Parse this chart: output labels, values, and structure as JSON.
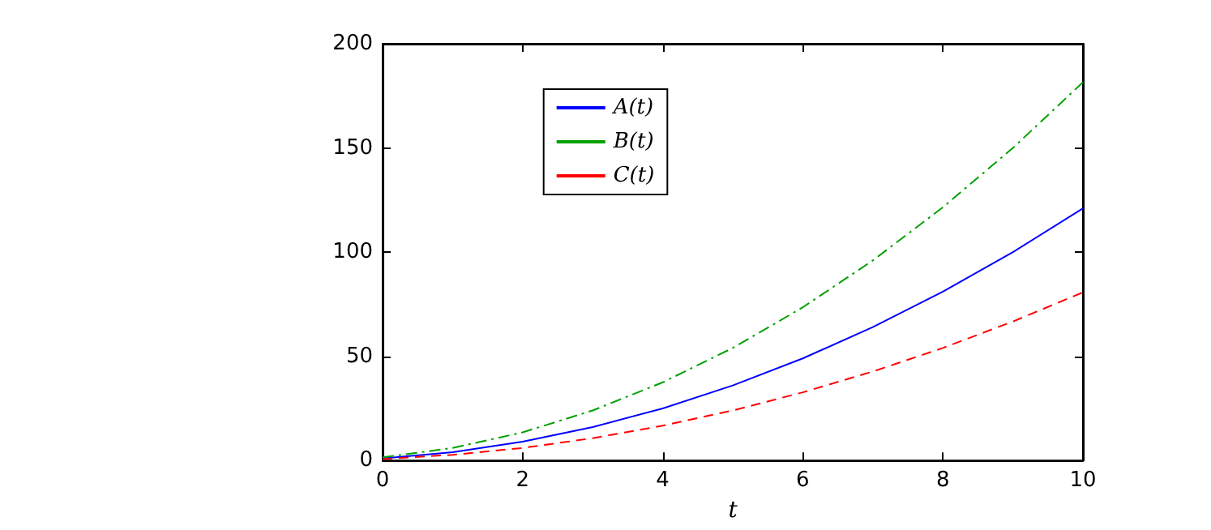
{
  "chart_data": {
    "type": "line",
    "xlabel": "t",
    "x": [
      0,
      1,
      2,
      3,
      4,
      5,
      6,
      7,
      8,
      9,
      10
    ],
    "series": [
      {
        "name": "A(t)",
        "color": "#0000ff",
        "line_style": "solid",
        "values": [
          1,
          4,
          9,
          16,
          25,
          36,
          49,
          64,
          81,
          100,
          121
        ]
      },
      {
        "name": "B(t)",
        "color": "#00a000",
        "line_style": "dotted",
        "values": [
          1.5,
          6,
          13.5,
          24,
          37.5,
          54,
          73.5,
          96,
          121.5,
          150,
          181.5
        ]
      },
      {
        "name": "C(t)",
        "color": "#ff0000",
        "line_style": "dashed",
        "values": [
          0.7,
          2.7,
          6,
          10.7,
          16.7,
          24,
          32.7,
          42.7,
          54,
          66.7,
          80.7
        ]
      }
    ],
    "xlim": [
      0,
      10
    ],
    "xticks": [
      0,
      2,
      4,
      6,
      8,
      10
    ],
    "ylim": [
      0,
      200
    ],
    "yticks": [
      0,
      50,
      100,
      150,
      200
    ],
    "grid": false,
    "legend": "top",
    "marker": "none"
  }
}
